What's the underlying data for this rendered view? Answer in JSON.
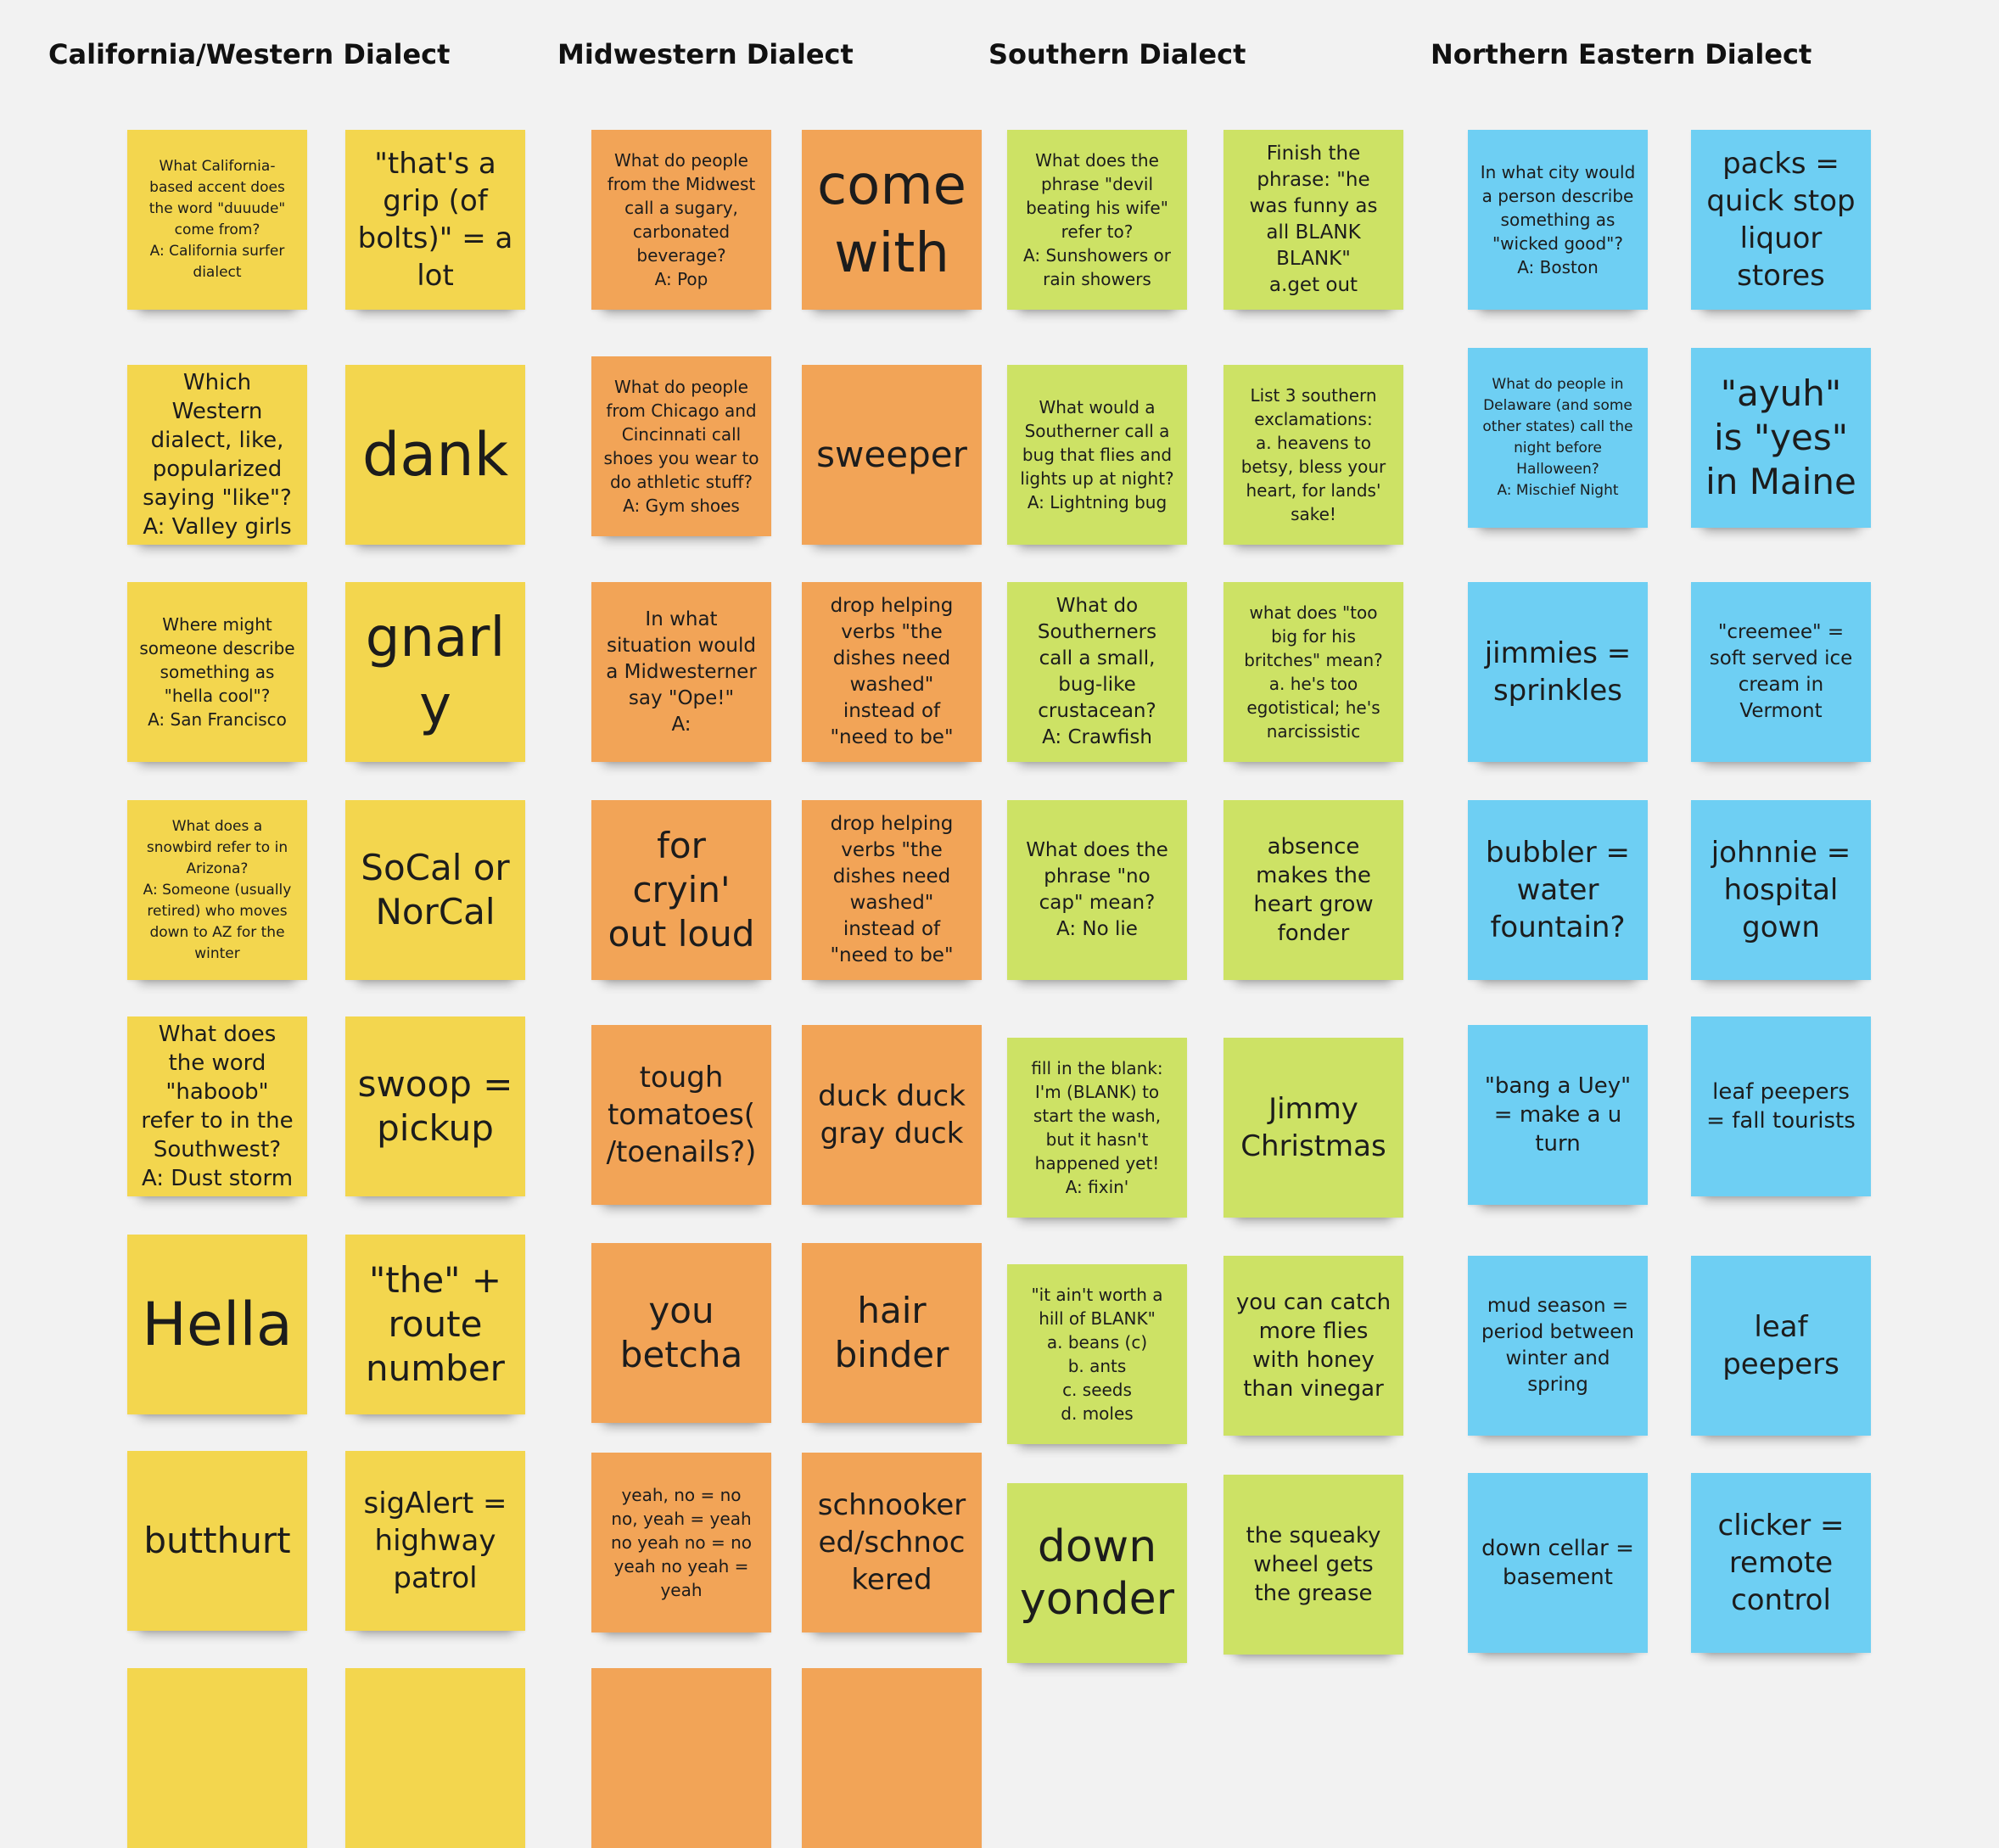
{
  "headings": {
    "california": "California/Western Dialect",
    "midwest": "Midwestern Dialect",
    "southern": "Southern Dialect",
    "northeast": "Northern Eastern Dialect"
  },
  "colors": {
    "yellow": "#f3d64e",
    "orange": "#f2a457",
    "green": "#cde265",
    "blue": "#6ecff3",
    "background": "#f2f2f2"
  },
  "notes": {
    "california": [
      "What California-based accent does the word \"duuude\" come from?\nA: California surfer dialect",
      "\"that's a grip (of bolts)\" = a lot",
      "Which Western dialect, like, popularized saying \"like\"?\nA: Valley girls",
      "dank",
      "Where might someone describe something as \"hella cool\"?\nA: San Francisco",
      "gnarly",
      "What does a snowbird refer to in Arizona?\nA: Someone (usually retired) who moves down to AZ for the winter",
      "SoCal or NorCal",
      "What does the word \"haboob\" refer to in the Southwest?\nA: Dust storm",
      "swoop = pickup",
      "Hella",
      "\"the\" + route number",
      "butthurt",
      "sigAlert = highway patrol"
    ],
    "midwest": [
      "What do people from the Midwest call a sugary, carbonated beverage?\nA: Pop",
      "come with",
      "What do people from Chicago and Cincinnati call shoes you wear to do athletic stuff?\nA: Gym shoes",
      "sweeper",
      "In what situation would a Midwesterner say \"Ope!\"\nA:",
      "drop helping verbs \"the dishes need washed\" instead of \"need to be\"",
      "for cryin' out loud",
      "drop helping verbs \"the dishes need washed\" instead of \"need to be\"",
      "tough tomatoes(/toenails?)",
      "duck duck gray duck",
      "you betcha",
      "hair binder",
      "yeah, no = no\nno, yeah = yeah\nno yeah no = no\nyeah no yeah = yeah",
      "schnookered/schnockered"
    ],
    "southern": [
      "What does the phrase \"devil beating his wife\" refer to?\nA: Sunshowers or rain showers",
      "Finish the phrase: \"he was funny as all BLANK BLANK\"\na.get out",
      "What would a Southerner call a bug that flies and lights up at night?\nA: Lightning bug",
      "List 3 southern exclamations:\na. heavens to betsy, bless your heart,  for lands' sake!",
      "What do Southerners call a small, bug-like crustacean?\nA: Crawfish",
      "what does \"too big for his britches\" mean?\na. he's too egotistical; he's narcissistic",
      "What does the phrase \"no cap\" mean?\nA: No lie",
      "absence makes the heart grow fonder",
      "fill in the blank: I'm (BLANK) to start the wash, but it hasn't happened yet!\nA: fixin'",
      "Jimmy Christmas",
      "\"it ain't worth a hill of BLANK\"\na. beans (c)\nb. ants\nc. seeds\nd. moles",
      "you can catch more flies with honey than vinegar",
      "down yonder",
      "the squeaky wheel gets the grease"
    ],
    "northeast": [
      "In what city would a person describe something as \"wicked good\"?\nA: Boston",
      "packs = quick stop liquor stores",
      "What do people in Delaware (and some other states) call the night before Halloween?\nA: Mischief Night",
      "\"ayuh\" is \"yes\" in Maine",
      "jimmies = sprinkles",
      "\"creemee\" = soft served ice cream in Vermont",
      "bubbler = water fountain?",
      "johnnie = hospital gown",
      "\"bang a Uey\" = make a u turn",
      "leaf peepers = fall tourists",
      "mud season = period between winter and spring",
      "leaf peepers",
      "down cellar = basement",
      "clicker = remote control"
    ]
  }
}
